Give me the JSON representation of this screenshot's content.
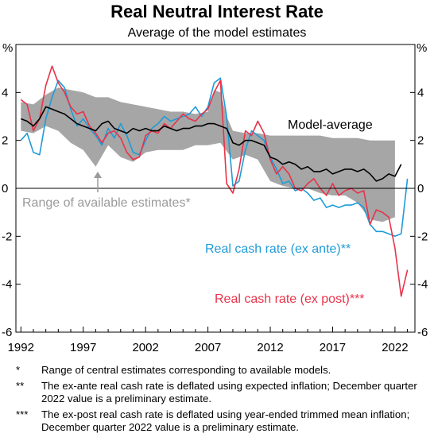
{
  "chart_data": {
    "type": "line",
    "title": "Real Neutral Interest Rate",
    "subtitle": "Average of the model estimates",
    "ylabel_left": "%",
    "ylabel_right": "%",
    "ylim": [
      -6,
      6
    ],
    "xlim": [
      1991.6,
      2023.6
    ],
    "y_ticks": [
      "-6",
      "-4",
      "-2",
      "0",
      "2",
      "4"
    ],
    "x_ticks": [
      "1992",
      "1997",
      "2002",
      "2007",
      "2012",
      "2017",
      "2022"
    ],
    "grid": false,
    "annotations": {
      "range": "Range of available estimates*",
      "model": "Model-average",
      "exante": "Real cash rate (ex ante)**",
      "expost": "Real cash rate (ex post)***"
    },
    "colors": {
      "range_fill": "#a6a6a6",
      "range_text": "#9a9a9a",
      "model": "#000000",
      "exante": "#1f9bd7",
      "expost": "#e8334a",
      "zero_line": "#000000"
    },
    "series": [
      {
        "name": "Model-average",
        "x": [
          1992,
          1992.5,
          1993,
          1993.5,
          1994,
          1994.5,
          1995,
          1995.5,
          1996,
          1996.5,
          1997,
          1997.5,
          1998,
          1998.5,
          1999,
          1999.5,
          2000,
          2000.5,
          2001,
          2001.5,
          2002,
          2002.5,
          2003,
          2003.5,
          2004,
          2004.5,
          2005,
          2005.5,
          2006,
          2006.5,
          2007,
          2007.5,
          2008,
          2008.5,
          2009,
          2009.5,
          2010,
          2010.5,
          2011,
          2011.5,
          2012,
          2012.5,
          2013,
          2013.5,
          2014,
          2014.5,
          2015,
          2015.5,
          2016,
          2016.5,
          2017,
          2017.5,
          2018,
          2018.5,
          2019,
          2019.5,
          2020,
          2020.5,
          2021,
          2021.5,
          2022,
          2022.5
        ],
        "values": [
          2.9,
          2.8,
          2.6,
          2.9,
          3.4,
          3.3,
          3.2,
          3.1,
          2.9,
          2.7,
          2.6,
          2.5,
          2.4,
          2.7,
          2.8,
          2.5,
          2.4,
          2.3,
          2.5,
          2.4,
          2.5,
          2.4,
          2.4,
          2.6,
          2.5,
          2.4,
          2.5,
          2.5,
          2.6,
          2.6,
          2.7,
          2.7,
          2.6,
          2.5,
          1.9,
          1.8,
          2.0,
          2.0,
          1.9,
          1.8,
          1.3,
          1.2,
          1.0,
          1.1,
          1.0,
          0.8,
          0.9,
          0.7,
          0.7,
          0.8,
          0.6,
          0.7,
          0.8,
          0.8,
          0.7,
          0.8,
          0.6,
          0.3,
          0.4,
          0.6,
          0.5,
          1.0
        ]
      },
      {
        "name": "Range upper",
        "x": [
          1992,
          1993,
          1994,
          1995,
          1996,
          1997,
          1998,
          1999,
          2000,
          2001,
          2002,
          2003,
          2004,
          2005,
          2006,
          2007,
          2007.5,
          2008,
          2008.5,
          2009,
          2010,
          2011,
          2012,
          2013,
          2014,
          2015,
          2016,
          2017,
          2018,
          2019,
          2020,
          2021,
          2022
        ],
        "values": [
          3.6,
          3.5,
          3.9,
          4.2,
          4.1,
          4.0,
          3.8,
          3.8,
          3.6,
          3.5,
          3.4,
          3.3,
          3.2,
          3.2,
          3.1,
          3.2,
          4.1,
          4.0,
          3.0,
          2.4,
          2.3,
          2.3,
          2.2,
          2.2,
          2.2,
          2.2,
          2.2,
          2.1,
          2.1,
          2.1,
          2.0,
          2.0,
          2.0
        ]
      },
      {
        "name": "Range lower",
        "x": [
          1992,
          1993,
          1994,
          1995,
          1996,
          1997,
          1998,
          1999,
          2000,
          2001,
          2002,
          2003,
          2004,
          2005,
          2006,
          2007,
          2008,
          2009,
          2010,
          2011,
          2012,
          2013,
          2014,
          2015,
          2016,
          2017,
          2018,
          2019,
          2020,
          2021,
          2022
        ],
        "values": [
          2.4,
          2.3,
          2.6,
          2.4,
          1.9,
          1.6,
          0.9,
          1.8,
          1.3,
          1.1,
          1.5,
          1.6,
          1.6,
          1.6,
          1.8,
          1.8,
          1.9,
          1.2,
          1.4,
          1.2,
          0.3,
          0.1,
          0.0,
          0.0,
          -0.2,
          -0.3,
          -0.3,
          -0.6,
          -1.3,
          -1.4,
          -1.2
        ]
      },
      {
        "name": "Real cash rate (ex ante)**",
        "x": [
          1992,
          1992.5,
          1993,
          1993.5,
          1994,
          1994.5,
          1995,
          1995.5,
          1996,
          1996.5,
          1997,
          1997.5,
          1998,
          1998.5,
          1999,
          1999.5,
          2000,
          2000.5,
          2001,
          2001.5,
          2002,
          2002.5,
          2003,
          2003.5,
          2004,
          2004.5,
          2005,
          2005.5,
          2006,
          2006.5,
          2007,
          2007.5,
          2008,
          2008.5,
          2009,
          2009.5,
          2010,
          2010.5,
          2011,
          2011.5,
          2012,
          2012.5,
          2013,
          2013.5,
          2014,
          2014.5,
          2015,
          2015.5,
          2016,
          2016.5,
          2017,
          2017.5,
          2018,
          2018.5,
          2019,
          2019.5,
          2020,
          2020.5,
          2021,
          2021.5,
          2022,
          2022.5,
          2023
        ],
        "values": [
          2.0,
          2.3,
          1.5,
          1.4,
          2.9,
          3.8,
          4.5,
          4.2,
          3.3,
          2.6,
          2.9,
          2.5,
          2.2,
          1.8,
          2.5,
          2.1,
          2.7,
          2.2,
          1.5,
          1.4,
          2.0,
          2.5,
          2.7,
          3.0,
          2.8,
          2.9,
          3.0,
          3.1,
          3.4,
          3.0,
          3.4,
          4.4,
          4.6,
          3.0,
          0.1,
          0.3,
          1.6,
          2.4,
          2.2,
          2.0,
          1.3,
          0.8,
          0.2,
          0.3,
          -0.1,
          0.0,
          -0.2,
          -0.5,
          -0.4,
          -0.8,
          -0.7,
          -0.8,
          -0.7,
          -0.7,
          -0.6,
          -0.8,
          -1.5,
          -1.8,
          -1.8,
          -1.9,
          -2.0,
          -1.9,
          0.4
        ]
      },
      {
        "name": "Real cash rate (ex post)***",
        "x": [
          1992,
          1992.5,
          1993,
          1993.5,
          1994,
          1994.5,
          1995,
          1995.5,
          1996,
          1996.5,
          1997,
          1997.5,
          1998,
          1998.5,
          1999,
          1999.5,
          2000,
          2000.5,
          2001,
          2001.5,
          2002,
          2002.5,
          2003,
          2003.5,
          2004,
          2004.5,
          2005,
          2005.5,
          2006,
          2006.5,
          2007,
          2007.5,
          2008,
          2008.5,
          2009,
          2009.5,
          2010,
          2010.5,
          2011,
          2011.5,
          2012,
          2012.5,
          2013,
          2013.5,
          2014,
          2014.5,
          2015,
          2015.5,
          2016,
          2016.5,
          2017,
          2017.5,
          2018,
          2018.5,
          2019,
          2019.5,
          2020,
          2020.5,
          2021,
          2021.5,
          2022,
          2022.5,
          2023
        ],
        "values": [
          3.7,
          3.5,
          2.4,
          2.9,
          4.3,
          5.1,
          4.4,
          4.0,
          3.4,
          3.1,
          3.2,
          2.6,
          2.3,
          1.9,
          2.3,
          2.4,
          2.1,
          1.5,
          1.2,
          1.3,
          2.2,
          2.4,
          2.3,
          2.7,
          2.5,
          2.8,
          3.1,
          2.9,
          2.8,
          3.1,
          3.3,
          4.0,
          4.5,
          0.2,
          -0.2,
          0.8,
          2.4,
          2.2,
          2.8,
          2.3,
          1.2,
          0.6,
          0.9,
          0.6,
          0.0,
          -0.1,
          0.2,
          0.4,
          0.0,
          -0.3,
          0.2,
          -0.3,
          -0.1,
          0.0,
          -0.2,
          -0.1,
          -1.5,
          -0.9,
          -1.0,
          -1.2,
          -2.5,
          -4.5,
          -3.4
        ]
      }
    ]
  },
  "notes": [
    {
      "mark": "*",
      "text": "Range of central estimates corresponding to available models."
    },
    {
      "mark": "**",
      "text": "The ex-ante real cash rate is deflated using expected inflation; December quarter 2022 value is a preliminary estimate."
    },
    {
      "mark": "***",
      "text": "The ex-post real cash rate is deflated using year-ended trimmed mean inflation; December quarter 2022 value is a preliminary estimate."
    }
  ]
}
